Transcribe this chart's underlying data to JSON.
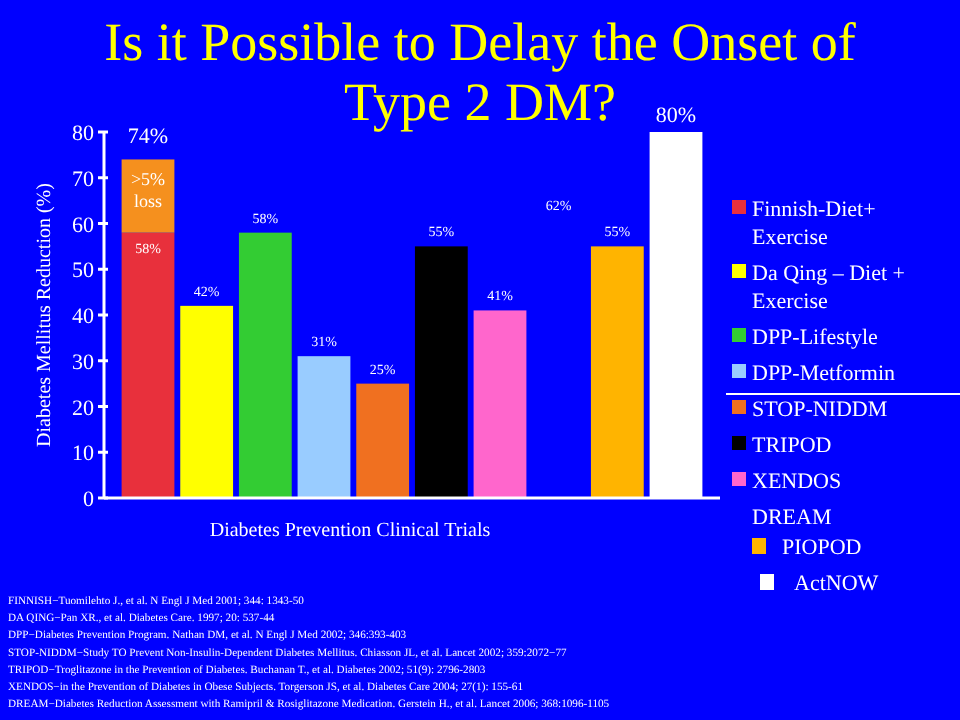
{
  "chart_data": {
    "type": "bar",
    "title": "Is it Possible to Delay the Onset of Type 2 DM?",
    "xlabel": "Diabetes Prevention Clinical Trials",
    "ylabel": "Diabetes Mellitus Reduction (%)",
    "categories": [
      null,
      null,
      null,
      null,
      null,
      null,
      null,
      null,
      null,
      null
    ],
    "stacked": true,
    "ylim": [
      0,
      80
    ],
    "yticks": [
      0,
      10,
      20,
      30,
      40,
      50,
      60,
      70,
      80
    ],
    "grid": false,
    "legend": "right",
    "legend_title": "DREAM",
    "series": [
      {
        "name": "Finnish-Diet+ Exercise",
        "color": "#e8303c",
        "values": [
          58,
          null,
          null,
          null,
          null,
          null,
          null,
          null,
          null,
          null
        ],
        "value_labels": [
          "58%",
          null,
          null,
          null,
          null,
          null,
          null,
          null,
          null,
          null
        ]
      },
      {
        "name": "Da Qing – Diet + Exercise",
        "color": "#ffff00",
        "values": [
          null,
          42,
          null,
          null,
          null,
          null,
          null,
          null,
          null,
          null
        ],
        "value_labels": [
          null,
          "42%",
          null,
          null,
          null,
          null,
          null,
          null,
          null,
          null
        ]
      },
      {
        "name": "DPP-Lifestyle",
        "color": "#33cc33",
        "values": [
          null,
          null,
          58,
          null,
          null,
          null,
          null,
          null,
          null,
          null
        ],
        "value_labels": [
          null,
          null,
          "58%",
          null,
          null,
          null,
          null,
          null,
          null,
          null
        ]
      },
      {
        "name": "DPP-Metformin",
        "color": "#99ccff",
        "values": [
          null,
          null,
          null,
          31,
          null,
          null,
          null,
          null,
          null,
          null
        ],
        "value_labels": [
          null,
          null,
          null,
          "31%",
          null,
          null,
          null,
          null,
          null,
          null
        ]
      },
      {
        "name": "STOP-NIDDM",
        "color": "#f07020",
        "values": [
          null,
          null,
          null,
          null,
          25,
          null,
          null,
          null,
          null,
          null
        ],
        "value_labels": [
          null,
          null,
          null,
          null,
          "25%",
          null,
          null,
          null,
          null,
          null
        ]
      },
      {
        "name": "TRIPOD",
        "color": "#000000",
        "values": [
          null,
          null,
          null,
          null,
          null,
          55,
          null,
          null,
          null,
          null
        ],
        "value_labels": [
          null,
          null,
          null,
          null,
          null,
          "55%",
          null,
          null,
          null,
          null
        ]
      },
      {
        "name": "XENDOS",
        "color": "#ff66cc",
        "values": [
          null,
          null,
          null,
          null,
          null,
          null,
          41,
          null,
          null,
          null
        ],
        "value_labels": [
          null,
          null,
          null,
          null,
          null,
          null,
          "41%",
          null,
          null,
          null
        ]
      },
      {
        "name": "PIOPOD",
        "color": "#ffb400",
        "values": [
          null,
          null,
          null,
          null,
          null,
          null,
          null,
          null,
          55,
          null
        ],
        "value_labels": [
          null,
          null,
          null,
          null,
          null,
          null,
          null,
          null,
          "55%",
          null
        ]
      },
      {
        "name": "ActNOW",
        "color": "#ffffff",
        "values": [
          null,
          null,
          null,
          null,
          null,
          null,
          null,
          null,
          null,
          80
        ],
        "value_labels": [
          null,
          null,
          null,
          null,
          null,
          null,
          null,
          null,
          null,
          "80%"
        ]
      },
      {
        "name": ">5% loss",
        "color": "#f5901e",
        "values": [
          16,
          null,
          null,
          null,
          null,
          null,
          null,
          null,
          null,
          null
        ]
      }
    ],
    "totals": [
      "74%",
      null,
      null,
      null,
      null,
      null,
      null,
      null,
      null,
      null
    ],
    "annotations": [
      "62%",
      "FINNISH−Tuomilehto  J., et al. N Engl J Med 2001; 344: 1343-50",
      "DA QING−Pan  XR., et al. Diabetes Care. 1997; 20: 537-44",
      "DPP−Diabetes  Prevention Program. Nathan DM, et al. N Engl J Med 2002; 346:393-403",
      "STOP-NIDDM−Study  TO Prevent Non-Insulin-Dependent Diabetes Mellitus. Chiasson JL, et al. Lancet 2002; 359:2072−77",
      "TRIPOD−Troglitazone  in the Prevention of Diabetes. Buchanan T., et al. Diabetes 2002; 51(9): 2796-2803",
      "XENDOS−in the Prevention of Diabetes in Obese Subjects. Torgerson JS, et al. Diabetes Care 2004; 27(1): 155-61",
      "DREAM−Diabetes  Reduction Assessment with Ramipril & Rosiglitazone Medication. Gerstein H., et al. Lancet 2006; 368:1096-1105"
    ]
  }
}
